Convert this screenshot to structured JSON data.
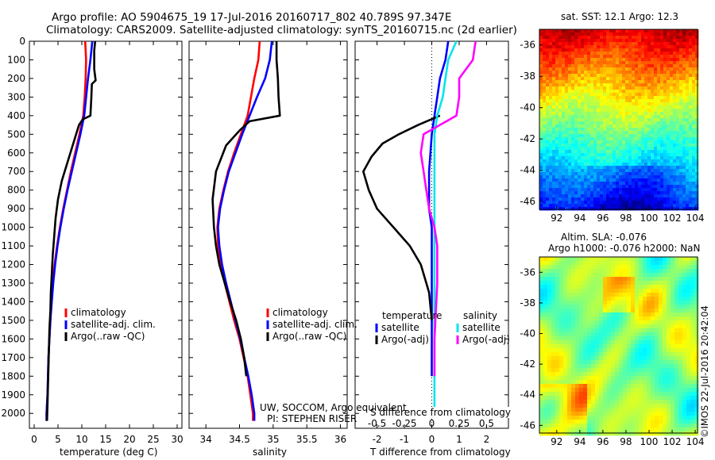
{
  "header": {
    "line1": "Argo profile: AO 5904675_19 17-Jul-2016 20160717_802 40.789S 97.347E",
    "line2": "Climatology: CARS2009. Satellite-adjusted climatology: synTS_20160715.nc (2d earlier)"
  },
  "colors": {
    "climatology": "#ff0000",
    "satellite": "#0000ff",
    "argo": "#000000",
    "salinity_sat": "#00e5ee",
    "salinity_argo": "#ff00ff"
  },
  "chart_data": [
    {
      "type": "line",
      "id": "temperature",
      "xlabel": "temperature (deg C)",
      "ylabel": "",
      "xlim": [
        -1,
        31
      ],
      "ylim": [
        2080,
        0
      ],
      "xticks": [
        0,
        5,
        10,
        15,
        20,
        25,
        30
      ],
      "yticks": [
        0,
        100,
        200,
        300,
        400,
        500,
        600,
        700,
        800,
        900,
        1000,
        1100,
        1200,
        1300,
        1400,
        1500,
        1600,
        1700,
        1800,
        1900,
        2000
      ],
      "legend": [
        "climatology",
        "satellite-adj. clim.",
        "Argo(..raw -QC)"
      ],
      "series": [
        {
          "name": "climatology",
          "color": "#ff0000",
          "points": [
            [
              10.7,
              0
            ],
            [
              10.9,
              100
            ],
            [
              10.8,
              200
            ],
            [
              10.6,
              300
            ],
            [
              10.3,
              400
            ],
            [
              9.5,
              500
            ],
            [
              8.6,
              600
            ],
            [
              7.7,
              700
            ],
            [
              6.9,
              800
            ],
            [
              6.1,
              900
            ],
            [
              5.4,
              1000
            ],
            [
              4.8,
              1100
            ],
            [
              4.3,
              1200
            ],
            [
              3.9,
              1300
            ],
            [
              3.6,
              1400
            ],
            [
              3.4,
              1500
            ],
            [
              3.2,
              1600
            ],
            [
              3.0,
              1700
            ],
            [
              2.9,
              1800
            ],
            [
              2.8,
              1900
            ],
            [
              2.6,
              2000
            ],
            [
              2.6,
              2040
            ]
          ]
        },
        {
          "name": "satellite",
          "color": "#0000ff",
          "points": [
            [
              12.2,
              0
            ],
            [
              11.8,
              100
            ],
            [
              11.3,
              200
            ],
            [
              10.9,
              300
            ],
            [
              10.5,
              400
            ],
            [
              9.7,
              500
            ],
            [
              8.8,
              600
            ],
            [
              7.9,
              700
            ],
            [
              7.0,
              800
            ],
            [
              6.2,
              900
            ],
            [
              5.5,
              1000
            ],
            [
              4.9,
              1100
            ],
            [
              4.4,
              1200
            ],
            [
              4.0,
              1300
            ],
            [
              3.7,
              1400
            ],
            [
              3.4,
              1500
            ],
            [
              3.2,
              1600
            ],
            [
              3.0,
              1700
            ],
            [
              2.9,
              1800
            ],
            [
              2.8,
              1900
            ],
            [
              2.6,
              2000
            ],
            [
              2.6,
              2040
            ]
          ]
        },
        {
          "name": "argo",
          "color": "#000000",
          "points": [
            [
              12.8,
              0
            ],
            [
              12.6,
              50
            ],
            [
              12.6,
              100
            ],
            [
              12.6,
              150
            ],
            [
              12.9,
              210
            ],
            [
              12.1,
              230
            ],
            [
              12.0,
              300
            ],
            [
              11.8,
              400
            ],
            [
              10.2,
              420
            ],
            [
              9.4,
              450
            ],
            [
              8.2,
              550
            ],
            [
              7.0,
              650
            ],
            [
              5.8,
              750
            ],
            [
              5.0,
              850
            ],
            [
              4.5,
              950
            ],
            [
              4.2,
              1050
            ],
            [
              3.9,
              1150
            ],
            [
              3.7,
              1250
            ],
            [
              3.5,
              1350
            ],
            [
              3.4,
              1450
            ],
            [
              3.2,
              1550
            ],
            [
              3.1,
              1650
            ],
            [
              3.0,
              1750
            ],
            [
              2.9,
              1850
            ],
            [
              2.8,
              1950
            ],
            [
              2.7,
              2040
            ]
          ]
        }
      ]
    },
    {
      "type": "line",
      "id": "salinity",
      "xlabel": "salinity",
      "ylabel": "",
      "xlim": [
        33.75,
        36.1
      ],
      "ylim": [
        2080,
        0
      ],
      "xticks": [
        34,
        34.5,
        35,
        35.5,
        36
      ],
      "legend": [
        "climatology",
        "satellite-adj. clim.",
        "Argo(..raw -QC)"
      ],
      "series": [
        {
          "name": "climatology",
          "color": "#ff0000",
          "points": [
            [
              34.8,
              0
            ],
            [
              34.78,
              100
            ],
            [
              34.72,
              200
            ],
            [
              34.67,
              300
            ],
            [
              34.62,
              400
            ],
            [
              34.52,
              500
            ],
            [
              34.42,
              600
            ],
            [
              34.33,
              700
            ],
            [
              34.26,
              800
            ],
            [
              34.2,
              900
            ],
            [
              34.17,
              1000
            ],
            [
              34.18,
              1100
            ],
            [
              34.22,
              1200
            ],
            [
              34.28,
              1300
            ],
            [
              34.35,
              1400
            ],
            [
              34.42,
              1500
            ],
            [
              34.5,
              1600
            ],
            [
              34.56,
              1700
            ],
            [
              34.62,
              1800
            ],
            [
              34.66,
              1900
            ],
            [
              34.7,
              2000
            ],
            [
              34.7,
              2040
            ]
          ]
        },
        {
          "name": "satellite",
          "color": "#0000ff",
          "points": [
            [
              34.98,
              0
            ],
            [
              34.95,
              100
            ],
            [
              34.88,
              200
            ],
            [
              34.76,
              300
            ],
            [
              34.65,
              400
            ],
            [
              34.54,
              500
            ],
            [
              34.44,
              600
            ],
            [
              34.34,
              700
            ],
            [
              34.27,
              800
            ],
            [
              34.21,
              900
            ],
            [
              34.18,
              1000
            ],
            [
              34.2,
              1100
            ],
            [
              34.24,
              1200
            ],
            [
              34.3,
              1300
            ],
            [
              34.37,
              1400
            ],
            [
              34.44,
              1500
            ],
            [
              34.51,
              1600
            ],
            [
              34.57,
              1700
            ],
            [
              34.63,
              1800
            ],
            [
              34.68,
              1900
            ],
            [
              34.72,
              2000
            ],
            [
              34.72,
              2040
            ]
          ]
        },
        {
          "name": "argo",
          "color": "#000000",
          "points": [
            [
              35.05,
              0
            ],
            [
              35.05,
              100
            ],
            [
              35.07,
              200
            ],
            [
              35.08,
              300
            ],
            [
              35.1,
              400
            ],
            [
              34.65,
              430
            ],
            [
              34.5,
              480
            ],
            [
              34.3,
              560
            ],
            [
              34.15,
              700
            ],
            [
              34.1,
              850
            ],
            [
              34.12,
              1000
            ],
            [
              34.15,
              1100
            ],
            [
              34.2,
              1200
            ],
            [
              34.28,
              1300
            ],
            [
              34.36,
              1400
            ],
            [
              34.45,
              1500
            ],
            [
              34.52,
              1600
            ],
            [
              34.57,
              1700
            ],
            [
              34.6,
              1800
            ]
          ]
        }
      ]
    },
    {
      "type": "line",
      "id": "differences",
      "xlabel": "T difference from climatology",
      "xlabel_top": "S difference from climatology",
      "xlim": [
        -2.8,
        2.8
      ],
      "ylim": [
        2080,
        0
      ],
      "xticks": [
        -2,
        -1,
        0,
        1,
        2
      ],
      "xticks_top": [
        {
          "label": "-0.5",
          "value": -2
        },
        {
          "label": "-0.25",
          "value": -1
        },
        {
          "label": "0",
          "value": 0
        },
        {
          "label": "0.25",
          "value": 1
        },
        {
          "label": "0.5",
          "value": 2
        }
      ],
      "legend_temperature_title": "temperature",
      "legend_salinity_title": "salinity",
      "legend_temperature": [
        "satellite",
        "Argo(-adj)"
      ],
      "legend_salinity": [
        "satellite",
        "Argo(-adj)"
      ],
      "series": [
        {
          "name": "T satellite",
          "color": "#0000ff",
          "points": [
            [
              0.6,
              0
            ],
            [
              0.5,
              100
            ],
            [
              0.3,
              200
            ],
            [
              0.2,
              300
            ],
            [
              0.1,
              400
            ],
            [
              0,
              500
            ],
            [
              -0.1,
              700
            ],
            [
              -0.1,
              900
            ],
            [
              0,
              1000
            ],
            [
              0,
              1200
            ],
            [
              0,
              1500
            ],
            [
              0,
              1800
            ]
          ]
        },
        {
          "name": "T argo",
          "color": "#000000",
          "points": [
            [
              0.3,
              400
            ],
            [
              -0.5,
              450
            ],
            [
              -1.2,
              500
            ],
            [
              -1.8,
              550
            ],
            [
              -2.2,
              620
            ],
            [
              -2.5,
              700
            ],
            [
              -2.3,
              800
            ],
            [
              -2.0,
              900
            ],
            [
              -1.4,
              1000
            ],
            [
              -0.8,
              1100
            ],
            [
              -0.4,
              1200
            ],
            [
              -0.1,
              1350
            ],
            [
              0,
              1500
            ]
          ]
        },
        {
          "name": "S satellite",
          "color": "#00e5ee",
          "points": [
            [
              0.9,
              0
            ],
            [
              0.6,
              100
            ],
            [
              0.5,
              200
            ],
            [
              0.4,
              300
            ],
            [
              0.2,
              400
            ],
            [
              0.1,
              500
            ],
            [
              0.1,
              700
            ],
            [
              0.1,
              1000
            ],
            [
              0.1,
              1300
            ],
            [
              0.1,
              1600
            ],
            [
              0.1,
              2000
            ]
          ]
        },
        {
          "name": "S argo",
          "color": "#ff00ff",
          "points": [
            [
              1.6,
              0
            ],
            [
              1.5,
              100
            ],
            [
              1.0,
              200
            ],
            [
              1.0,
              300
            ],
            [
              0.9,
              400
            ],
            [
              -0.3,
              500
            ],
            [
              -0.4,
              600
            ],
            [
              -0.3,
              700
            ],
            [
              -0.2,
              800
            ],
            [
              -0.1,
              900
            ],
            [
              0.1,
              1000
            ],
            [
              0.2,
              1100
            ],
            [
              0.2,
              1300
            ],
            [
              0.1,
              1600
            ],
            [
              0.1,
              1800
            ]
          ]
        }
      ]
    },
    {
      "type": "heatmap",
      "id": "sst-map",
      "title": "sat. SST: 12.1  Argo: 12.3",
      "xticks": [
        92,
        94,
        96,
        98,
        100,
        102,
        104
      ],
      "yticks": [
        -36,
        -38,
        -40,
        -42,
        -44,
        -46
      ],
      "xlim": [
        90.5,
        104.2
      ],
      "ylim": [
        -35,
        -46.5
      ]
    },
    {
      "type": "heatmap",
      "id": "sla-map",
      "title": "Altim. SLA: -0.076",
      "subtitle": "Argo h1000: -0.076  h2000: NaN",
      "xticks": [
        92,
        94,
        96,
        98,
        100,
        102,
        104
      ],
      "yticks": [
        -36,
        -38,
        -40,
        -42,
        -44,
        -46
      ],
      "xlim": [
        90.5,
        104.2
      ],
      "ylim": [
        -35,
        -46.5
      ]
    }
  ],
  "annotations": {
    "credit1": "UW, SOCCOM, Argo equivalent",
    "credit2": "PI: STEPHEN RISER",
    "watermark": "©IMOS 22-Jul-2016 20:42:04"
  }
}
